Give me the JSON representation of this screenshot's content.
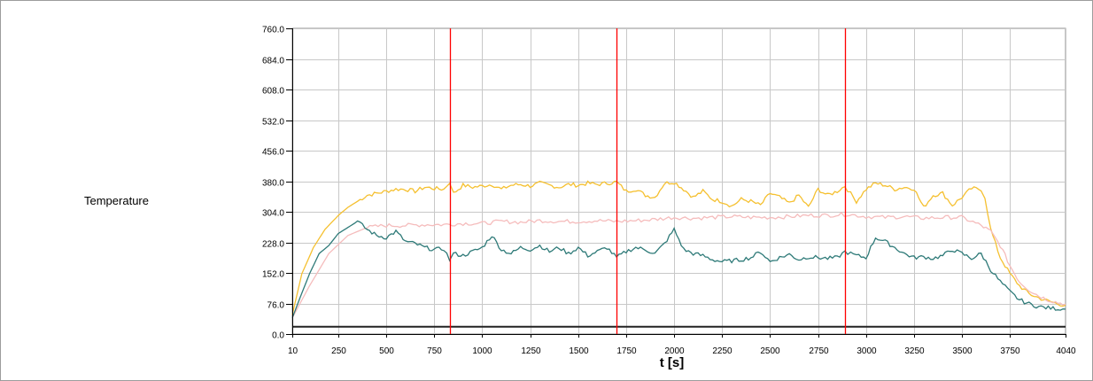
{
  "chart_data": {
    "type": "line",
    "title": "",
    "xlabel": "t [s]",
    "ylabel": "Temperature",
    "xlim": [
      10,
      4040
    ],
    "ylim": [
      0,
      760
    ],
    "grid": true,
    "x_ticks": [
      10,
      250,
      500,
      750,
      1000,
      1250,
      1500,
      1750,
      2000,
      2250,
      2500,
      2750,
      3000,
      3250,
      3500,
      3750,
      4040
    ],
    "y_ticks": [
      0,
      76,
      152,
      228,
      304,
      380,
      456,
      532,
      608,
      684,
      760
    ],
    "x_tick_labels": [
      "10",
      "250",
      "500",
      "750",
      "1000",
      "1250",
      "1500",
      "1750",
      "2000",
      "2250",
      "2500",
      "2750",
      "3000",
      "3250",
      "3500",
      "3750",
      "4040"
    ],
    "y_tick_labels": [
      "0.0",
      "76.0",
      "152.0",
      "228.0",
      "304.0",
      "380.0",
      "456.0",
      "532.0",
      "608.0",
      "684.0",
      "760.0"
    ],
    "vertical_markers": {
      "x": [
        830,
        1700,
        2890
      ],
      "color": "#ff0000"
    },
    "series": [
      {
        "color": "#f5c030",
        "x": [
          10,
          60,
          120,
          180,
          250,
          300,
          350,
          400,
          450,
          500,
          550,
          600,
          650,
          700,
          750,
          800,
          830,
          850,
          900,
          950,
          1000,
          1050,
          1100,
          1150,
          1200,
          1250,
          1300,
          1350,
          1400,
          1450,
          1500,
          1550,
          1600,
          1650,
          1700,
          1750,
          1800,
          1850,
          1900,
          1950,
          2000,
          2050,
          2100,
          2150,
          2200,
          2250,
          2300,
          2350,
          2400,
          2450,
          2500,
          2550,
          2600,
          2650,
          2700,
          2750,
          2800,
          2850,
          2890,
          2950,
          3000,
          3050,
          3100,
          3150,
          3200,
          3250,
          3300,
          3350,
          3400,
          3450,
          3500,
          3550,
          3600,
          3620,
          3650,
          3700,
          3750,
          3800,
          3850,
          3900,
          3950,
          4000,
          4040
        ],
        "y": [
          48,
          150,
          215,
          260,
          295,
          315,
          330,
          345,
          350,
          355,
          360,
          360,
          355,
          365,
          362,
          360,
          378,
          350,
          370,
          365,
          368,
          372,
          360,
          370,
          372,
          368,
          375,
          370,
          365,
          372,
          370,
          375,
          372,
          375,
          378,
          355,
          360,
          345,
          340,
          375,
          378,
          360,
          340,
          355,
          335,
          330,
          318,
          335,
          330,
          320,
          350,
          340,
          325,
          345,
          315,
          360,
          345,
          355,
          368,
          330,
          360,
          375,
          370,
          360,
          365,
          362,
          315,
          345,
          350,
          320,
          340,
          362,
          360,
          340,
          260,
          190,
          150,
          120,
          100,
          90,
          82,
          75,
          72
        ]
      },
      {
        "color": "#f5bcbc",
        "x": [
          10,
          100,
          200,
          300,
          400,
          500,
          600,
          700,
          800,
          900,
          1000,
          1100,
          1200,
          1300,
          1400,
          1500,
          1600,
          1700,
          1800,
          1900,
          2000,
          2100,
          2200,
          2300,
          2400,
          2500,
          2600,
          2700,
          2800,
          2900,
          3000,
          3100,
          3200,
          3300,
          3400,
          3500,
          3600,
          3650,
          3700,
          3750,
          3800,
          3850,
          3900,
          3950,
          4000,
          4040
        ],
        "y": [
          40,
          120,
          200,
          245,
          265,
          270,
          270,
          272,
          272,
          275,
          275,
          280,
          278,
          282,
          280,
          280,
          282,
          280,
          282,
          285,
          290,
          288,
          290,
          292,
          290,
          290,
          292,
          295,
          295,
          298,
          292,
          290,
          292,
          288,
          290,
          290,
          270,
          255,
          220,
          170,
          130,
          110,
          95,
          85,
          78,
          75
        ]
      },
      {
        "color": "#2e7a78",
        "x": [
          10,
          50,
          100,
          150,
          200,
          250,
          300,
          350,
          400,
          450,
          500,
          550,
          600,
          650,
          700,
          750,
          800,
          830,
          850,
          900,
          950,
          1000,
          1050,
          1100,
          1150,
          1200,
          1250,
          1300,
          1350,
          1400,
          1450,
          1500,
          1550,
          1600,
          1650,
          1700,
          1750,
          1800,
          1850,
          1900,
          1950,
          2000,
          2050,
          2100,
          2150,
          2200,
          2250,
          2300,
          2350,
          2400,
          2450,
          2500,
          2550,
          2600,
          2650,
          2700,
          2750,
          2800,
          2850,
          2890,
          2950,
          3000,
          3050,
          3100,
          3150,
          3200,
          3250,
          3300,
          3350,
          3400,
          3450,
          3500,
          3550,
          3600,
          3650,
          3700,
          3750,
          3800,
          3850,
          3900,
          3950,
          4000,
          4040
        ],
        "y": [
          40,
          90,
          150,
          200,
          220,
          250,
          265,
          280,
          260,
          245,
          240,
          255,
          230,
          225,
          215,
          210,
          212,
          185,
          200,
          195,
          205,
          215,
          245,
          210,
          200,
          215,
          210,
          220,
          205,
          215,
          200,
          215,
          195,
          205,
          215,
          190,
          205,
          215,
          210,
          200,
          225,
          260,
          210,
          200,
          195,
          185,
          180,
          182,
          185,
          190,
          205,
          180,
          190,
          198,
          185,
          192,
          190,
          188,
          190,
          205,
          195,
          190,
          240,
          230,
          215,
          200,
          190,
          192,
          188,
          195,
          210,
          200,
          188,
          200,
          160,
          130,
          105,
          85,
          75,
          68,
          65,
          63,
          62
        ]
      },
      {
        "color": "#222222",
        "x": [
          10,
          4040
        ],
        "y": [
          18,
          18
        ]
      }
    ]
  }
}
